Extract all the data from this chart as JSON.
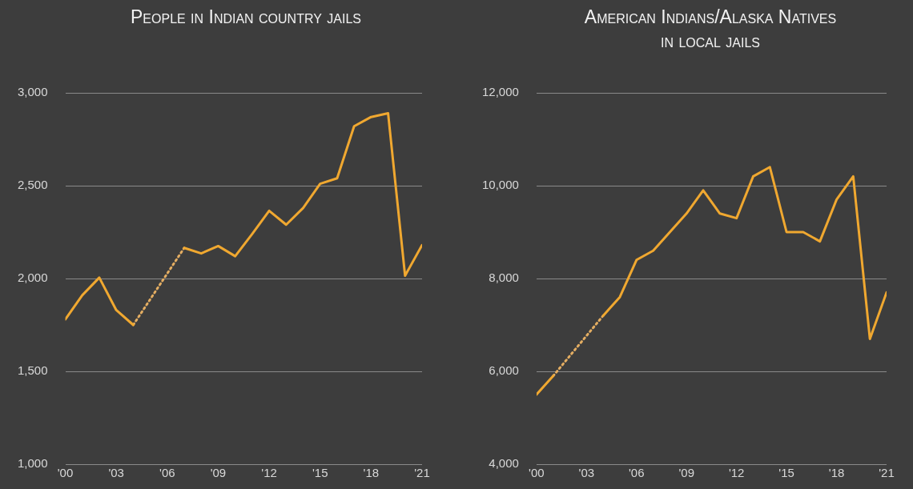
{
  "chart_data": [
    {
      "type": "line",
      "title": "People in Indian country jails",
      "x": [
        2000,
        2001,
        2002,
        2003,
        2004,
        2005,
        2006,
        2007,
        2008,
        2009,
        2010,
        2011,
        2012,
        2013,
        2014,
        2015,
        2016,
        2017,
        2018,
        2019,
        2020,
        2021
      ],
      "series": [
        {
          "color": "#f0a830",
          "line_style": "solid",
          "values": [
            1780,
            1910,
            2005,
            1830,
            1750,
            null,
            null,
            2165,
            2135,
            2175,
            2120,
            2240,
            2365,
            2290,
            2380,
            2510,
            2540,
            2820,
            2870,
            2890,
            2015,
            2180
          ]
        },
        {
          "color": "#e3ad62",
          "line_style": "dotted",
          "x": [
            2004,
            2007
          ],
          "values": [
            1750,
            2165
          ]
        }
      ],
      "xlim": [
        2000,
        2021
      ],
      "xticks": [
        {
          "value": 2000,
          "label": "'00"
        },
        {
          "value": 2003,
          "label": "'03"
        },
        {
          "value": 2006,
          "label": "'06"
        },
        {
          "value": 2009,
          "label": "'09"
        },
        {
          "value": 2012,
          "label": "'12"
        },
        {
          "value": 2015,
          "label": "'15"
        },
        {
          "value": 2018,
          "label": "'18"
        },
        {
          "value": 2021,
          "label": "'21"
        }
      ],
      "ylim": [
        1000,
        3000
      ],
      "yticks": [
        {
          "value": 1000,
          "label": "1,000"
        },
        {
          "value": 1500,
          "label": "1,500"
        },
        {
          "value": 2000,
          "label": "2,000"
        },
        {
          "value": 2500,
          "label": "2,500"
        },
        {
          "value": 3000,
          "label": "3,000"
        }
      ],
      "grid": "y",
      "marker": "none",
      "legend": false
    },
    {
      "type": "line",
      "title": "American Indians/Alaska Natives in local jails",
      "x": [
        2000,
        2001,
        2002,
        2003,
        2004,
        2005,
        2006,
        2007,
        2008,
        2009,
        2010,
        2011,
        2012,
        2013,
        2014,
        2015,
        2016,
        2017,
        2018,
        2019,
        2020,
        2021
      ],
      "series": [
        {
          "color": "#f0a830",
          "line_style": "solid",
          "values": [
            5500,
            5900,
            null,
            null,
            7200,
            7600,
            8400,
            8600,
            9000,
            9400,
            9900,
            9400,
            9300,
            10200,
            10400,
            9000,
            9000,
            8800,
            9700,
            10200,
            6700,
            7700
          ]
        },
        {
          "color": "#e3ad62",
          "line_style": "dotted",
          "x": [
            2001,
            2004
          ],
          "values": [
            5900,
            7200
          ]
        }
      ],
      "xlim": [
        2000,
        2021
      ],
      "xticks": [
        {
          "value": 2000,
          "label": "'00"
        },
        {
          "value": 2003,
          "label": "'03"
        },
        {
          "value": 2006,
          "label": "'06"
        },
        {
          "value": 2009,
          "label": "'09"
        },
        {
          "value": 2012,
          "label": "'12"
        },
        {
          "value": 2015,
          "label": "'15"
        },
        {
          "value": 2018,
          "label": "'18"
        },
        {
          "value": 2021,
          "label": "'21"
        }
      ],
      "ylim": [
        4000,
        12000
      ],
      "yticks": [
        {
          "value": 4000,
          "label": "4,000"
        },
        {
          "value": 6000,
          "label": "6,000"
        },
        {
          "value": 8000,
          "label": "8,000"
        },
        {
          "value": 10000,
          "label": "10,000"
        },
        {
          "value": 12000,
          "label": "12,000"
        }
      ],
      "grid": "y",
      "marker": "none",
      "legend": false
    }
  ]
}
